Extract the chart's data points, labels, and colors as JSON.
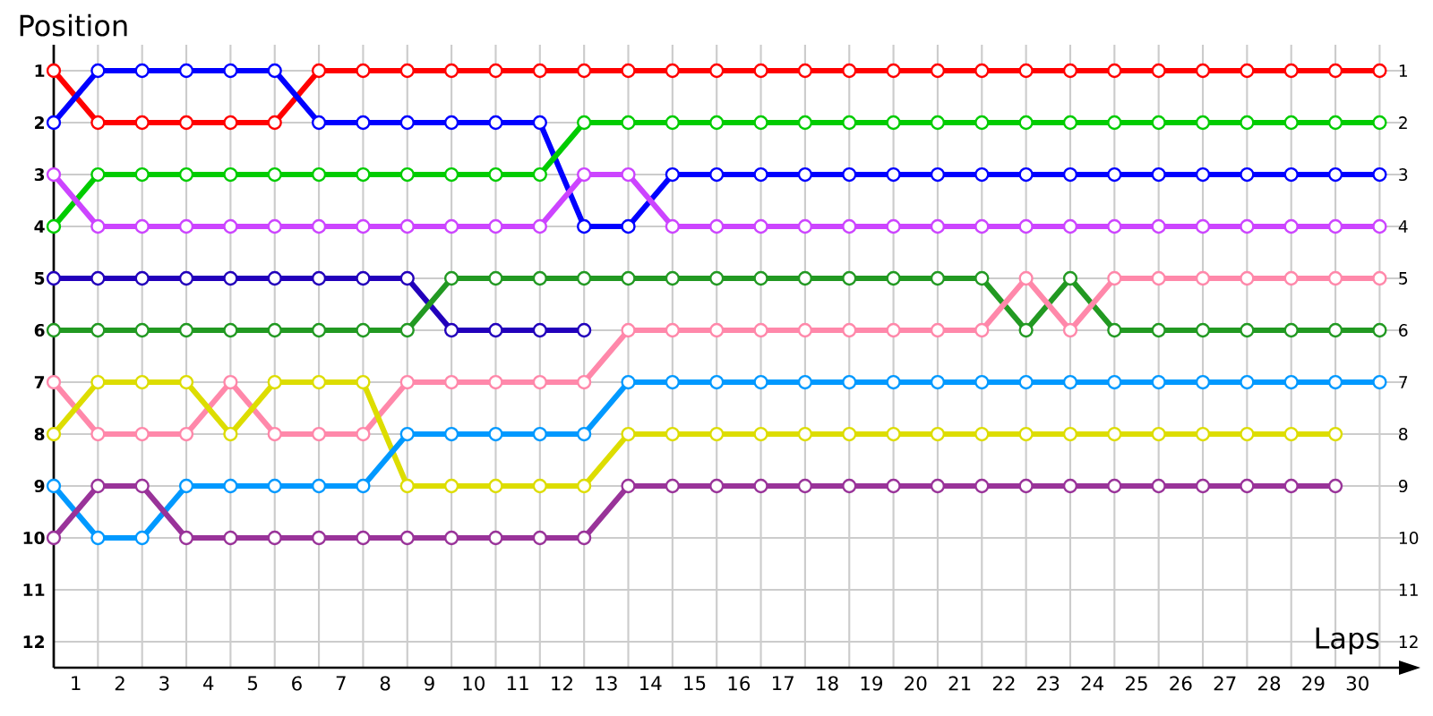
{
  "chart_data": {
    "type": "line",
    "xlabel": "Laps",
    "ylabel": "Position",
    "x": [
      0,
      1,
      2,
      3,
      4,
      5,
      6,
      7,
      8,
      9,
      10,
      11,
      12,
      13,
      14,
      15,
      16,
      17,
      18,
      19,
      20,
      21,
      22,
      23,
      24,
      25,
      26,
      27,
      28,
      29,
      30
    ],
    "series": [
      {
        "color": "#ff0000",
        "values": [
          1,
          2,
          2,
          2,
          2,
          2,
          1,
          1,
          1,
          1,
          1,
          1,
          1,
          1,
          1,
          1,
          1,
          1,
          1,
          1,
          1,
          1,
          1,
          1,
          1,
          1,
          1,
          1,
          1,
          1,
          1
        ]
      },
      {
        "color": "#0000ff",
        "values": [
          2,
          1,
          1,
          1,
          1,
          1,
          2,
          2,
          2,
          2,
          2,
          2,
          4,
          4,
          3,
          3,
          3,
          3,
          3,
          3,
          3,
          3,
          3,
          3,
          3,
          3,
          3,
          3,
          3,
          3,
          3
        ]
      },
      {
        "color": "#00cc00",
        "values": [
          4,
          3,
          3,
          3,
          3,
          3,
          3,
          3,
          3,
          3,
          3,
          3,
          2,
          2,
          2,
          2,
          2,
          2,
          2,
          2,
          2,
          2,
          2,
          2,
          2,
          2,
          2,
          2,
          2,
          2,
          2
        ]
      },
      {
        "color": "#cc44ff",
        "values": [
          3,
          4,
          4,
          4,
          4,
          4,
          4,
          4,
          4,
          4,
          4,
          4,
          3,
          3,
          4,
          4,
          4,
          4,
          4,
          4,
          4,
          4,
          4,
          4,
          4,
          4,
          4,
          4,
          4,
          4,
          4
        ]
      },
      {
        "color": "#2200bb",
        "values": [
          5,
          5,
          5,
          5,
          5,
          5,
          5,
          5,
          5,
          6,
          6,
          6,
          6,
          null,
          null,
          null,
          null,
          null,
          null,
          null,
          null,
          null,
          null,
          null,
          null,
          null,
          null,
          null,
          null,
          null,
          null
        ]
      },
      {
        "color": "#229922",
        "values": [
          6,
          6,
          6,
          6,
          6,
          6,
          6,
          6,
          6,
          5,
          5,
          5,
          5,
          5,
          5,
          5,
          5,
          5,
          5,
          5,
          5,
          5,
          6,
          5,
          6,
          6,
          6,
          6,
          6,
          6,
          6
        ]
      },
      {
        "color": "#ff88aa",
        "values": [
          7,
          8,
          8,
          8,
          7,
          8,
          8,
          8,
          7,
          7,
          7,
          7,
          7,
          6,
          6,
          6,
          6,
          6,
          6,
          6,
          6,
          6,
          5,
          6,
          5,
          5,
          5,
          5,
          5,
          5,
          5
        ]
      },
      {
        "color": "#dddd00",
        "values": [
          8,
          7,
          7,
          7,
          8,
          7,
          7,
          7,
          9,
          9,
          9,
          9,
          9,
          8,
          8,
          8,
          8,
          8,
          8,
          8,
          8,
          8,
          8,
          8,
          8,
          8,
          8,
          8,
          8,
          8,
          null
        ]
      },
      {
        "color": "#0099ff",
        "values": [
          9,
          10,
          10,
          9,
          9,
          9,
          9,
          9,
          8,
          8,
          8,
          8,
          8,
          7,
          7,
          7,
          7,
          7,
          7,
          7,
          7,
          7,
          7,
          7,
          7,
          7,
          7,
          7,
          7,
          7,
          7
        ]
      },
      {
        "color": "#993399",
        "values": [
          10,
          9,
          9,
          10,
          10,
          10,
          10,
          10,
          10,
          10,
          10,
          10,
          10,
          9,
          9,
          9,
          9,
          9,
          9,
          9,
          9,
          9,
          9,
          9,
          9,
          9,
          9,
          9,
          9,
          9,
          null
        ]
      }
    ],
    "xlim": [
      0,
      30.6
    ],
    "xticks": [
      {
        "value": 0.5,
        "label": "1"
      },
      {
        "value": 1.5,
        "label": "2"
      },
      {
        "value": 2.5,
        "label": "3"
      },
      {
        "value": 3.5,
        "label": "4"
      },
      {
        "value": 4.5,
        "label": "5"
      },
      {
        "value": 5.5,
        "label": "6"
      },
      {
        "value": 6.5,
        "label": "7"
      },
      {
        "value": 7.5,
        "label": "8"
      },
      {
        "value": 8.5,
        "label": "9"
      },
      {
        "value": 9.5,
        "label": "10"
      },
      {
        "value": 10.5,
        "label": "11"
      },
      {
        "value": 11.5,
        "label": "12"
      },
      {
        "value": 12.5,
        "label": "13"
      },
      {
        "value": 13.5,
        "label": "14"
      },
      {
        "value": 14.5,
        "label": "15"
      },
      {
        "value": 15.5,
        "label": "16"
      },
      {
        "value": 16.5,
        "label": "17"
      },
      {
        "value": 17.5,
        "label": "18"
      },
      {
        "value": 18.5,
        "label": "19"
      },
      {
        "value": 19.5,
        "label": "20"
      },
      {
        "value": 20.5,
        "label": "21"
      },
      {
        "value": 21.5,
        "label": "22"
      },
      {
        "value": 22.5,
        "label": "23"
      },
      {
        "value": 23.5,
        "label": "24"
      },
      {
        "value": 24.5,
        "label": "25"
      },
      {
        "value": 25.5,
        "label": "26"
      },
      {
        "value": 26.5,
        "label": "27"
      },
      {
        "value": 27.5,
        "label": "28"
      },
      {
        "value": 28.5,
        "label": "29"
      },
      {
        "value": 29.5,
        "label": "30"
      }
    ],
    "ylim": [
      12.5,
      0.5
    ],
    "yticks": [
      1,
      2,
      3,
      4,
      5,
      6,
      7,
      8,
      9,
      10,
      11,
      12
    ],
    "y2lim": [
      12.5,
      0.5
    ],
    "y2ticks": [
      1,
      2,
      3,
      4,
      5,
      6,
      7,
      8,
      9,
      10,
      11,
      12
    ],
    "grid": true,
    "marker": "circle",
    "line_style": "solid"
  }
}
